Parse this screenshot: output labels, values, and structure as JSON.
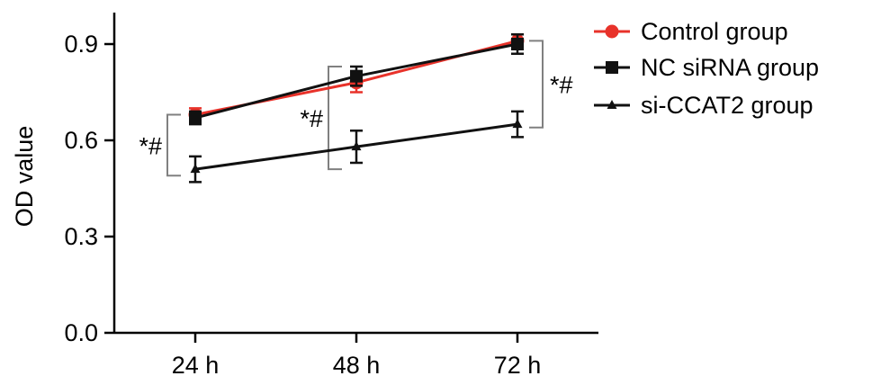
{
  "chart_data": {
    "type": "line",
    "title": "",
    "xlabel": "",
    "ylabel": "OD value",
    "categories": [
      "24 h",
      "48 h",
      "72 h"
    ],
    "ylim": [
      0.0,
      1.0
    ],
    "yticks": [
      0.0,
      0.3,
      0.6,
      0.9
    ],
    "ytick_labels": [
      "0.0",
      "0.3",
      "0.6",
      "0.9"
    ],
    "series": [
      {
        "name": "Control group",
        "values": [
          0.68,
          0.78,
          0.91
        ],
        "errors": [
          0.02,
          0.03,
          0.02
        ],
        "color": "#e8322a",
        "marker": "circle"
      },
      {
        "name": "NC siRNA group",
        "values": [
          0.67,
          0.8,
          0.9
        ],
        "errors": [
          0.02,
          0.03,
          0.03
        ],
        "color": "#111111",
        "marker": "square"
      },
      {
        "name": "si-CCAT2 group",
        "values": [
          0.51,
          0.58,
          0.65
        ],
        "errors": [
          0.04,
          0.05,
          0.04
        ],
        "color": "#111111",
        "marker": "triangle"
      }
    ],
    "legend": {
      "position": "top-right"
    },
    "grid": false,
    "annotations": [
      {
        "text": "*#",
        "category": "24 h",
        "side": "left",
        "y_top": 0.68,
        "y_bottom": 0.49
      },
      {
        "text": "*#",
        "category": "48 h",
        "side": "left",
        "y_top": 0.83,
        "y_bottom": 0.51
      },
      {
        "text": "*#",
        "category": "72 h",
        "side": "right",
        "y_top": 0.91,
        "y_bottom": 0.64
      }
    ]
  }
}
